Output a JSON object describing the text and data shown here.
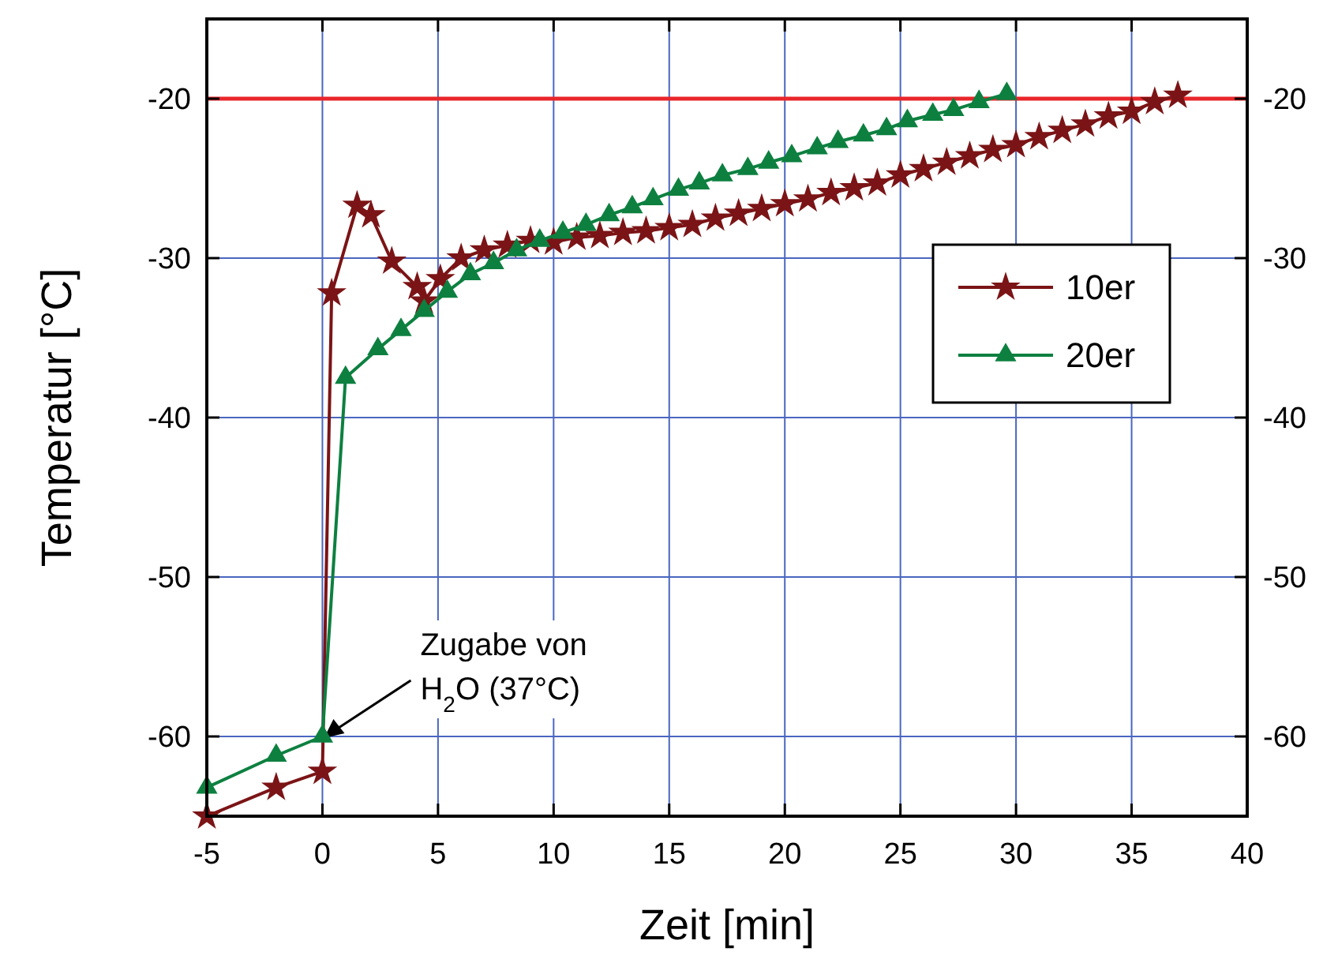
{
  "chart_data": {
    "type": "line",
    "xlabel": "Zeit [min]",
    "ylabel": "Temperatur [°C]",
    "xlim": [
      -5,
      40
    ],
    "xticks": [
      -5,
      0,
      5,
      10,
      15,
      20,
      25,
      30,
      35,
      40
    ],
    "ylim": [
      -65,
      -15
    ],
    "yticks": [
      -60,
      -50,
      -40,
      -30,
      -20
    ],
    "y2lim": [
      -65,
      -15
    ],
    "y2ticks": [
      -60,
      -50,
      -40,
      -30,
      -20
    ],
    "grid": true,
    "legend": "right",
    "line_style": "solid",
    "ref_lines": [
      {
        "axis": "y",
        "value": -20,
        "color": "#e8262b"
      }
    ],
    "annotations": [
      {
        "text": "Zugabe von\nH$_{2}$O (37°C)",
        "x": 0,
        "y": -60
      }
    ],
    "series": [
      {
        "name": "10er",
        "color": "#7b1416",
        "marker": "star",
        "x": [
          -5,
          -2,
          0,
          0.4,
          1.5,
          2.1,
          3,
          4.1,
          4.4,
          5.1,
          6,
          7,
          8,
          9,
          10,
          11,
          12,
          13,
          14,
          15,
          16,
          17,
          18,
          19,
          20,
          21,
          22,
          23,
          24,
          25,
          26,
          27,
          28,
          29,
          30,
          31,
          32,
          33,
          34,
          35,
          36,
          37
        ],
        "values": [
          -65,
          -63.2,
          -62.2,
          -32.2,
          -26.7,
          -27.3,
          -30.2,
          -31.8,
          -32.7,
          -31.3,
          -30,
          -29.5,
          -29.2,
          -28.9,
          -29,
          -28.7,
          -28.6,
          -28.4,
          -28.3,
          -28.1,
          -27.9,
          -27.5,
          -27.2,
          -26.9,
          -26.6,
          -26.3,
          -25.9,
          -25.6,
          -25.3,
          -24.8,
          -24.4,
          -24,
          -23.6,
          -23.2,
          -22.9,
          -22.4,
          -22,
          -21.6,
          -21.1,
          -20.8,
          -20.2,
          -19.8
        ]
      },
      {
        "name": "20er",
        "color": "#0d8040",
        "marker": "triangle",
        "x": [
          -5,
          -2,
          0,
          1,
          2.4,
          3.4,
          4.4,
          5.4,
          6.4,
          7.4,
          8.4,
          9.4,
          10.4,
          11.4,
          12.4,
          13.4,
          14.3,
          15.4,
          16.3,
          17.3,
          18.4,
          19.3,
          20.3,
          21.4,
          22.3,
          23.4,
          24.4,
          25.3,
          26.4,
          27.3,
          28.4,
          29.6
        ],
        "values": [
          -63.2,
          -61.2,
          -60,
          -37.5,
          -35.7,
          -34.5,
          -33.3,
          -32.1,
          -31,
          -30.3,
          -29.5,
          -28.9,
          -28.4,
          -27.9,
          -27.3,
          -26.8,
          -26.3,
          -25.7,
          -25.3,
          -24.8,
          -24.4,
          -24,
          -23.6,
          -23.1,
          -22.7,
          -22.3,
          -21.9,
          -21.4,
          -21,
          -20.7,
          -20.2,
          -19.7
        ]
      }
    ]
  }
}
